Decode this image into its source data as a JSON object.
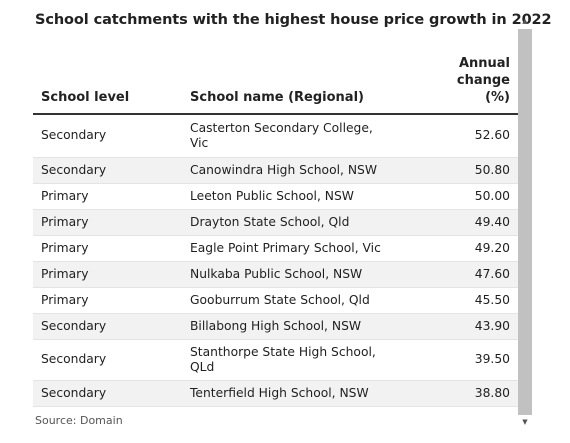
{
  "title": "School catchments with the highest house price growth in 2022",
  "table": {
    "headers": {
      "level": "School level",
      "name": "School name (Regional)",
      "change_line1": "Annual change",
      "change_line2": "(%)"
    },
    "rows": [
      {
        "level": "Secondary",
        "name": "Casterton Secondary College, Vic",
        "change": "52.60"
      },
      {
        "level": "Secondary",
        "name": "Canowindra High School, NSW",
        "change": "50.80"
      },
      {
        "level": "Primary",
        "name": "Leeton Public School, NSW",
        "change": "50.00"
      },
      {
        "level": "Primary",
        "name": "Drayton State School, Qld",
        "change": "49.40"
      },
      {
        "level": "Primary",
        "name": "Eagle Point Primary School, Vic",
        "change": "49.20"
      },
      {
        "level": "Primary",
        "name": "Nulkaba Public School, NSW",
        "change": "47.60"
      },
      {
        "level": "Primary",
        "name": "Gooburrum State School, Qld",
        "change": "45.50"
      },
      {
        "level": "Secondary",
        "name": "Billabong High School, NSW",
        "change": "43.90"
      },
      {
        "level": "Secondary",
        "name": "Stanthorpe State High School, QLd",
        "change": "39.50"
      },
      {
        "level": "Secondary",
        "name": "Tenterfield High School, NSW",
        "change": "38.80"
      }
    ]
  },
  "source": "Source: Domain",
  "scrollbar": {
    "up_icon": "triangle-up-icon",
    "down_icon": "triangle-down-icon"
  }
}
